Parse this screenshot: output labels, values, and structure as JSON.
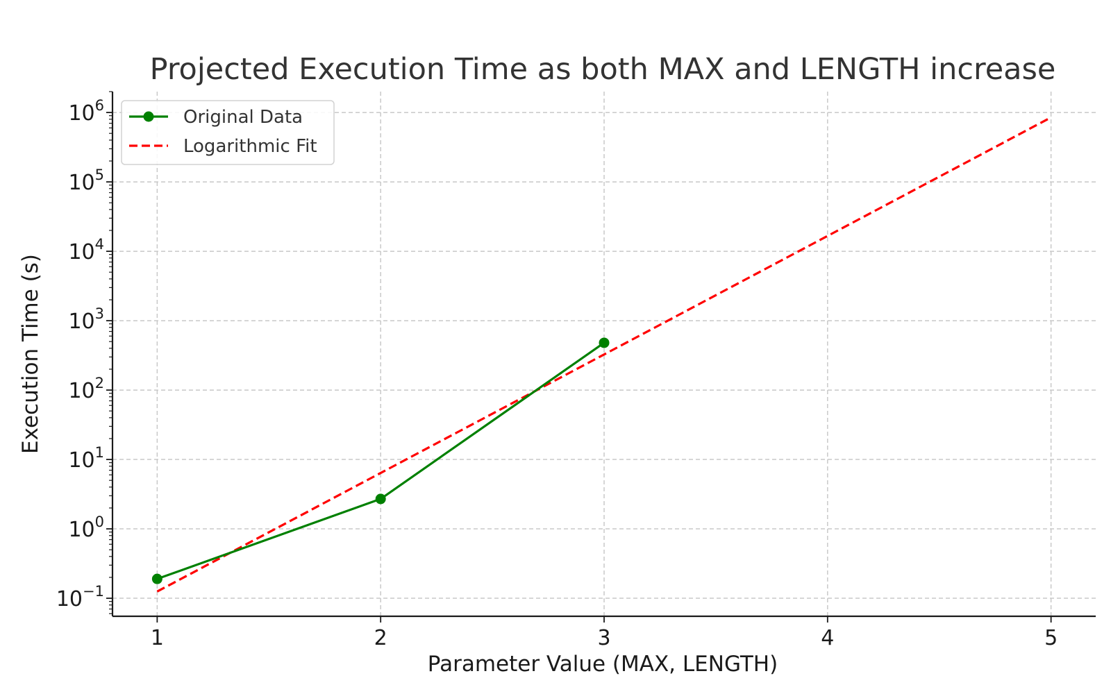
{
  "chart_data": {
    "type": "line",
    "title": "Projected Execution Time as both MAX and LENGTH increase",
    "xlabel": "Parameter Value (MAX, LENGTH)",
    "ylabel": "Execution Time (s)",
    "x_scale": "linear",
    "y_scale": "log",
    "xlim": [
      0.8,
      5.2
    ],
    "ylim": [
      0.055,
      2000000
    ],
    "x_ticks": [
      1,
      2,
      3,
      4,
      5
    ],
    "x_tick_labels": [
      "1",
      "2",
      "3",
      "4",
      "5"
    ],
    "y_ticks": [
      0.1,
      1,
      10,
      100,
      1000,
      10000,
      100000,
      1000000
    ],
    "y_tick_labels": [
      {
        "base": "10",
        "exp": "−1"
      },
      {
        "base": "10",
        "exp": "0"
      },
      {
        "base": "10",
        "exp": "1"
      },
      {
        "base": "10",
        "exp": "2"
      },
      {
        "base": "10",
        "exp": "3"
      },
      {
        "base": "10",
        "exp": "4"
      },
      {
        "base": "10",
        "exp": "5"
      },
      {
        "base": "10",
        "exp": "6"
      }
    ],
    "grid": true,
    "legend_position": "top-left",
    "series": [
      {
        "name": "Original Data",
        "style": "solid-markers",
        "color": "#008000",
        "x": [
          1,
          2,
          3
        ],
        "y": [
          0.19,
          2.7,
          480
        ]
      },
      {
        "name": "Logarithmic Fit",
        "style": "dashed",
        "color": "#ff0000",
        "x": [
          1,
          5
        ],
        "y": [
          0.125,
          850000
        ]
      }
    ]
  }
}
